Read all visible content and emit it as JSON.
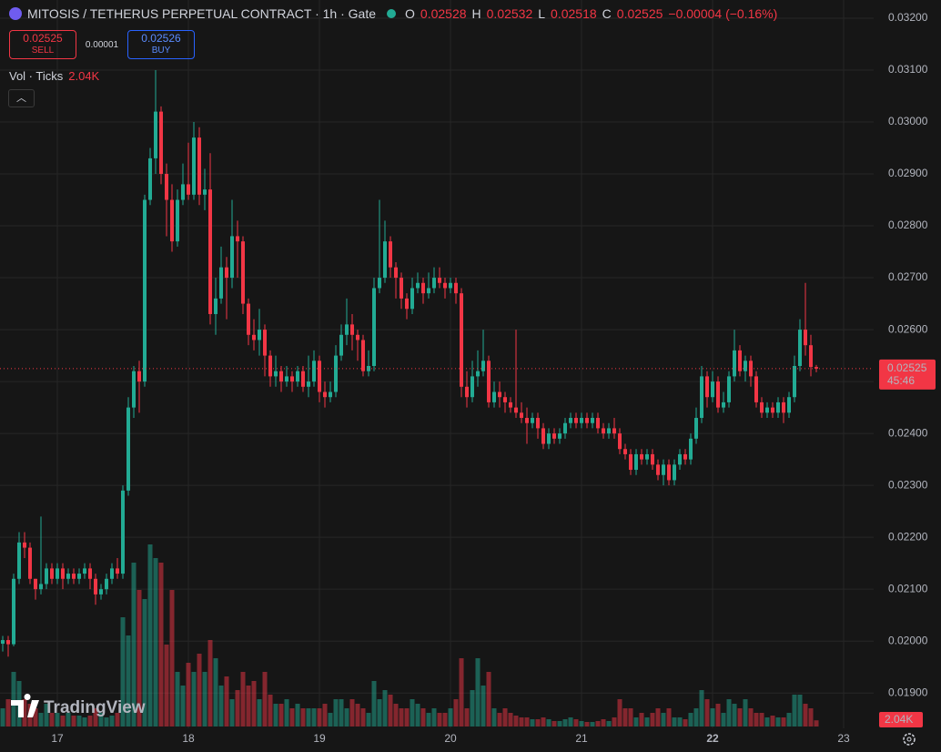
{
  "chart_data": {
    "type": "candlestick",
    "title": "MITOSIS / TETHERUS PERPETUAL CONTRACT · 1h · Gate",
    "ohlc_letters": [
      "O",
      "H",
      "L",
      "C"
    ],
    "change": "−0.00004 (−0.16%)",
    "sell_price": "0.02525",
    "sell_label": "SELL",
    "spread": "0.00001",
    "buy_price": "0.02526",
    "buy_label": "BUY",
    "volume_title": "Vol · Ticks",
    "volume_label": "2.04K",
    "watermark": "TradingView",
    "last_price": 0.02525,
    "countdown": "45:46",
    "up_color": "#22ab94",
    "down_color": "#f23645",
    "grid": true,
    "ylim": [
      0.01832,
      0.03235
    ],
    "yticks": [
      {
        "value": 0.019,
        "label": "0.01900"
      },
      {
        "value": 0.02,
        "label": "0.02000"
      },
      {
        "value": 0.021,
        "label": "0.02100"
      },
      {
        "value": 0.022,
        "label": "0.02200"
      },
      {
        "value": 0.023,
        "label": "0.02300"
      },
      {
        "value": 0.024,
        "label": "0.02400"
      },
      {
        "value": 0.025,
        "label": "0.02500"
      },
      {
        "value": 0.026,
        "label": "0.02600"
      },
      {
        "value": 0.027,
        "label": "0.02700"
      },
      {
        "value": 0.028,
        "label": "0.02800"
      },
      {
        "value": 0.029,
        "label": "0.02900"
      },
      {
        "value": 0.03,
        "label": "0.03000"
      },
      {
        "value": 0.031,
        "label": "0.03100"
      },
      {
        "value": 0.032,
        "label": "0.03200"
      }
    ],
    "volume_lim": [
      0,
      60000
    ],
    "categories": [
      null,
      null,
      null,
      null,
      null,
      null,
      null,
      null,
      null,
      null,
      "17",
      null,
      null,
      null,
      null,
      null,
      null,
      null,
      null,
      null,
      null,
      null,
      null,
      null,
      null,
      null,
      null,
      null,
      null,
      null,
      null,
      null,
      null,
      null,
      "18",
      null,
      null,
      null,
      null,
      null,
      null,
      null,
      null,
      null,
      null,
      null,
      null,
      null,
      null,
      null,
      null,
      null,
      null,
      null,
      null,
      null,
      null,
      null,
      "19",
      null,
      null,
      null,
      null,
      null,
      null,
      null,
      null,
      null,
      null,
      null,
      null,
      null,
      null,
      null,
      null,
      null,
      null,
      null,
      null,
      null,
      null,
      null,
      "20",
      null,
      null,
      null,
      null,
      null,
      null,
      null,
      null,
      null,
      null,
      null,
      null,
      null,
      null,
      null,
      null,
      null,
      null,
      null,
      null,
      null,
      null,
      null,
      "21",
      null,
      null,
      null,
      null,
      null,
      null,
      null,
      null,
      null,
      null,
      null,
      null,
      null,
      null,
      null,
      null,
      null,
      null,
      null,
      null,
      null,
      null,
      null,
      "22",
      null,
      null,
      null,
      null,
      null,
      null,
      null,
      null,
      null,
      null,
      null,
      null,
      null,
      null,
      null,
      null,
      null,
      null,
      null,
      null,
      null,
      null,
      null,
      "23",
      null,
      null,
      null,
      null,
      null
    ],
    "open": [
      0.01995,
      0.02002,
      0.01994,
      0.0212,
      0.0219,
      0.0218,
      0.0212,
      0.021,
      0.0211,
      0.0214,
      0.0212,
      0.0214,
      0.0212,
      0.0213,
      0.0212,
      0.0213,
      0.0214,
      0.0212,
      0.0209,
      0.021,
      0.0212,
      0.0214,
      0.0213,
      0.0229,
      0.0245,
      0.0252,
      0.025,
      0.0285,
      0.0293,
      0.0302,
      0.029,
      0.0285,
      0.0277,
      0.0285,
      0.0288,
      0.0286,
      0.0297,
      0.0286,
      0.0287,
      0.0263,
      0.0266,
      0.0272,
      0.027,
      0.0278,
      0.0277,
      0.0265,
      0.0259,
      0.0258,
      0.026,
      0.0255,
      0.0251,
      0.0252,
      0.025,
      0.0251,
      0.025,
      0.0252,
      0.0249,
      0.025,
      0.0254,
      0.0248,
      0.0247,
      0.0248,
      0.0255,
      0.0259,
      0.0261,
      0.0259,
      0.0258,
      0.0252,
      0.0253,
      0.0268,
      0.027,
      0.0277,
      0.0272,
      0.027,
      0.0266,
      0.0264,
      0.0268,
      0.0269,
      0.0267,
      0.0268,
      0.027,
      0.0269,
      0.0268,
      0.0269,
      0.0267,
      0.0249,
      0.0247,
      0.0251,
      0.0252,
      0.0254,
      0.0246,
      0.0248,
      0.0247,
      0.0246,
      0.0245,
      0.0244,
      0.0243,
      0.0242,
      0.0243,
      0.0241,
      0.0238,
      0.024,
      0.0239,
      0.024,
      0.0242,
      0.0243,
      0.0242,
      0.0243,
      0.0242,
      0.0243,
      0.0241,
      0.024,
      0.0241,
      0.024,
      0.0237,
      0.0236,
      0.0233,
      0.0236,
      0.0235,
      0.0236,
      0.0234,
      0.0232,
      0.0234,
      0.0231,
      0.0234,
      0.0236,
      0.0235,
      0.0239,
      0.0243,
      0.0251,
      0.0247,
      0.025,
      0.0245,
      0.0246,
      0.0251,
      0.0256,
      0.0252,
      0.0254,
      0.0251,
      0.0246,
      0.0244,
      0.0245,
      0.0244,
      0.0246,
      0.0244,
      0.0247,
      0.0253,
      0.026,
      0.0257,
      0.02528,
      null,
      null,
      null,
      null,
      null,
      null,
      null,
      null,
      null,
      null
    ],
    "high": [
      0.0201,
      0.0201,
      0.0213,
      0.0221,
      0.0221,
      0.0219,
      0.0212,
      0.0224,
      0.0215,
      0.0215,
      0.0215,
      0.0215,
      0.0214,
      0.0214,
      0.0214,
      0.0215,
      0.0215,
      0.0213,
      0.0211,
      0.0213,
      0.0215,
      0.0216,
      0.023,
      0.0247,
      0.0253,
      0.0254,
      0.0286,
      0.0295,
      0.031,
      0.0303,
      0.0292,
      0.0288,
      0.0287,
      0.0292,
      0.0296,
      0.03,
      0.0299,
      0.0291,
      0.0294,
      0.027,
      0.0276,
      0.0274,
      0.0285,
      0.0281,
      0.0278,
      0.0266,
      0.0262,
      0.0264,
      0.0261,
      0.0256,
      0.0255,
      0.0253,
      0.0253,
      0.0252,
      0.0253,
      0.0253,
      0.0255,
      0.0256,
      0.0255,
      0.025,
      0.025,
      0.0257,
      0.0261,
      0.0266,
      0.0263,
      0.026,
      0.0259,
      0.0256,
      0.027,
      0.0285,
      0.0281,
      0.0278,
      0.0273,
      0.0271,
      0.0267,
      0.027,
      0.0271,
      0.027,
      0.0271,
      0.0272,
      0.0272,
      0.027,
      0.027,
      0.027,
      0.0268,
      0.0252,
      0.0254,
      0.0256,
      0.026,
      0.0255,
      0.025,
      0.025,
      0.0248,
      0.0247,
      0.026,
      0.0246,
      0.0245,
      0.0244,
      0.0244,
      0.0242,
      0.0241,
      0.0241,
      0.0241,
      0.0243,
      0.0244,
      0.0244,
      0.0244,
      0.0244,
      0.0244,
      0.0244,
      0.0242,
      0.0242,
      0.0243,
      0.0241,
      0.0238,
      0.0237,
      0.0237,
      0.0237,
      0.0237,
      0.0237,
      0.0235,
      0.0235,
      0.0235,
      0.0235,
      0.0237,
      0.0237,
      0.024,
      0.0245,
      0.0253,
      0.0252,
      0.0252,
      0.0251,
      0.0248,
      0.0252,
      0.026,
      0.0257,
      0.0255,
      0.0255,
      0.0252,
      0.0247,
      0.0246,
      0.0246,
      0.0247,
      0.0247,
      0.0248,
      0.0255,
      0.0262,
      0.0269,
      0.0259,
      0.02532,
      null,
      null,
      null,
      null,
      null,
      null,
      null,
      null,
      null,
      null
    ],
    "low": [
      0.0198,
      0.0197,
      0.0199,
      0.0211,
      0.0216,
      0.0211,
      0.0208,
      0.0209,
      0.021,
      0.0211,
      0.0211,
      0.021,
      0.0211,
      0.0211,
      0.0211,
      0.0212,
      0.021,
      0.0207,
      0.0208,
      0.0209,
      0.0211,
      0.0212,
      0.0212,
      0.0228,
      0.0243,
      0.0244,
      0.0249,
      0.0284,
      0.029,
      0.0288,
      0.0278,
      0.0275,
      0.0276,
      0.0284,
      0.0285,
      0.0285,
      0.0284,
      0.0283,
      0.0261,
      0.0259,
      0.0265,
      0.0262,
      0.0268,
      0.027,
      0.0263,
      0.0257,
      0.0256,
      0.0255,
      0.0251,
      0.0249,
      0.0249,
      0.0248,
      0.0249,
      0.0248,
      0.0249,
      0.0248,
      0.0247,
      0.0249,
      0.0246,
      0.0245,
      0.0246,
      0.0247,
      0.0254,
      0.0257,
      0.0256,
      0.0254,
      0.0251,
      0.0251,
      0.0252,
      0.0267,
      0.0269,
      0.027,
      0.0266,
      0.0264,
      0.0262,
      0.0263,
      0.0267,
      0.0265,
      0.0266,
      0.0267,
      0.0268,
      0.0266,
      0.0267,
      0.0265,
      0.0247,
      0.0245,
      0.0246,
      0.0249,
      0.0251,
      0.0245,
      0.0245,
      0.0245,
      0.0244,
      0.0244,
      0.0243,
      0.0242,
      0.0238,
      0.0241,
      0.0239,
      0.0237,
      0.0237,
      0.0238,
      0.0238,
      0.0239,
      0.0241,
      0.0241,
      0.0241,
      0.0241,
      0.0241,
      0.024,
      0.0239,
      0.0239,
      0.0239,
      0.0236,
      0.0235,
      0.0232,
      0.0232,
      0.0234,
      0.0234,
      0.0233,
      0.0231,
      0.023,
      0.023,
      0.023,
      0.0233,
      0.0234,
      0.0234,
      0.0238,
      0.0242,
      0.0245,
      0.0246,
      0.0244,
      0.0244,
      0.0245,
      0.025,
      0.0251,
      0.025,
      0.0249,
      0.0245,
      0.0243,
      0.0243,
      0.0243,
      0.0243,
      0.0242,
      0.0243,
      0.0246,
      0.0252,
      0.0255,
      0.0251,
      0.02518,
      null,
      null,
      null,
      null,
      null,
      null,
      null,
      null,
      null,
      null
    ],
    "close": [
      0.02002,
      0.01994,
      0.0212,
      0.0219,
      0.0218,
      0.0212,
      0.021,
      0.0211,
      0.0214,
      0.0212,
      0.0214,
      0.0212,
      0.0213,
      0.0212,
      0.0213,
      0.0214,
      0.0212,
      0.0209,
      0.021,
      0.0212,
      0.0214,
      0.0213,
      0.0229,
      0.0245,
      0.0252,
      0.025,
      0.0285,
      0.0293,
      0.0302,
      0.029,
      0.0285,
      0.0277,
      0.0285,
      0.0288,
      0.0286,
      0.0297,
      0.0286,
      0.0287,
      0.0263,
      0.0266,
      0.0272,
      0.027,
      0.0278,
      0.0277,
      0.0265,
      0.0259,
      0.0258,
      0.026,
      0.0255,
      0.0251,
      0.0252,
      0.025,
      0.0251,
      0.025,
      0.0252,
      0.0249,
      0.025,
      0.0254,
      0.0248,
      0.0247,
      0.0248,
      0.0255,
      0.0259,
      0.0261,
      0.0259,
      0.0258,
      0.0252,
      0.0253,
      0.0268,
      0.027,
      0.0277,
      0.0272,
      0.027,
      0.0266,
      0.0264,
      0.0268,
      0.0269,
      0.0267,
      0.0268,
      0.027,
      0.0269,
      0.0268,
      0.0269,
      0.0267,
      0.0249,
      0.0247,
      0.0251,
      0.0252,
      0.0254,
      0.0246,
      0.0248,
      0.0247,
      0.0246,
      0.0245,
      0.0244,
      0.0243,
      0.0242,
      0.0243,
      0.0241,
      0.0238,
      0.024,
      0.0239,
      0.024,
      0.0242,
      0.0243,
      0.0242,
      0.0243,
      0.0242,
      0.0243,
      0.0241,
      0.024,
      0.0241,
      0.024,
      0.0237,
      0.0236,
      0.0233,
      0.0236,
      0.0235,
      0.0236,
      0.0234,
      0.0232,
      0.0234,
      0.0231,
      0.0234,
      0.0236,
      0.0235,
      0.0239,
      0.0243,
      0.0251,
      0.0247,
      0.025,
      0.0245,
      0.0246,
      0.0251,
      0.0256,
      0.0252,
      0.0254,
      0.0251,
      0.0246,
      0.0244,
      0.0245,
      0.0244,
      0.0246,
      0.0244,
      0.0247,
      0.0253,
      0.026,
      0.0257,
      0.02528,
      0.02525,
      null,
      null,
      null,
      null,
      null,
      null,
      null,
      null,
      null,
      null
    ],
    "volume": [
      6000,
      9000,
      18000,
      15000,
      9000,
      7500,
      6000,
      4500,
      7500,
      4500,
      4500,
      3600,
      4500,
      3600,
      3600,
      3000,
      3600,
      6000,
      4500,
      3000,
      3600,
      4500,
      36000,
      30000,
      54000,
      45000,
      42000,
      60000,
      55500,
      54000,
      27000,
      45000,
      18000,
      13500,
      21000,
      18000,
      24000,
      18000,
      28500,
      22500,
      13500,
      16500,
      9000,
      12000,
      18000,
      13500,
      15000,
      9000,
      18000,
      10500,
      7500,
      7500,
      9000,
      6000,
      7500,
      6000,
      6000,
      6000,
      6000,
      7500,
      4500,
      9000,
      9000,
      6000,
      9000,
      7500,
      6000,
      4500,
      15000,
      9000,
      12000,
      10500,
      7500,
      6000,
      6000,
      9000,
      7500,
      6000,
      4500,
      6000,
      4500,
      4500,
      6000,
      9000,
      22500,
      6000,
      12000,
      22500,
      13500,
      18000,
      6000,
      4500,
      6000,
      4500,
      3600,
      3000,
      3000,
      2400,
      2400,
      3000,
      2400,
      1800,
      1800,
      2400,
      3000,
      2400,
      1800,
      1500,
      1500,
      1800,
      2400,
      1800,
      3000,
      9000,
      6000,
      6000,
      3000,
      4500,
      3000,
      4500,
      6000,
      4500,
      6000,
      3000,
      3000,
      2400,
      4500,
      6000,
      12000,
      9000,
      6000,
      7500,
      4500,
      9000,
      7500,
      6000,
      9000,
      6000,
      4500,
      4500,
      3000,
      3600,
      3000,
      3000,
      4500,
      10500,
      10500,
      7500,
      6000,
      2040,
      null,
      null,
      null,
      null,
      null,
      null,
      null,
      null,
      null,
      null
    ]
  }
}
